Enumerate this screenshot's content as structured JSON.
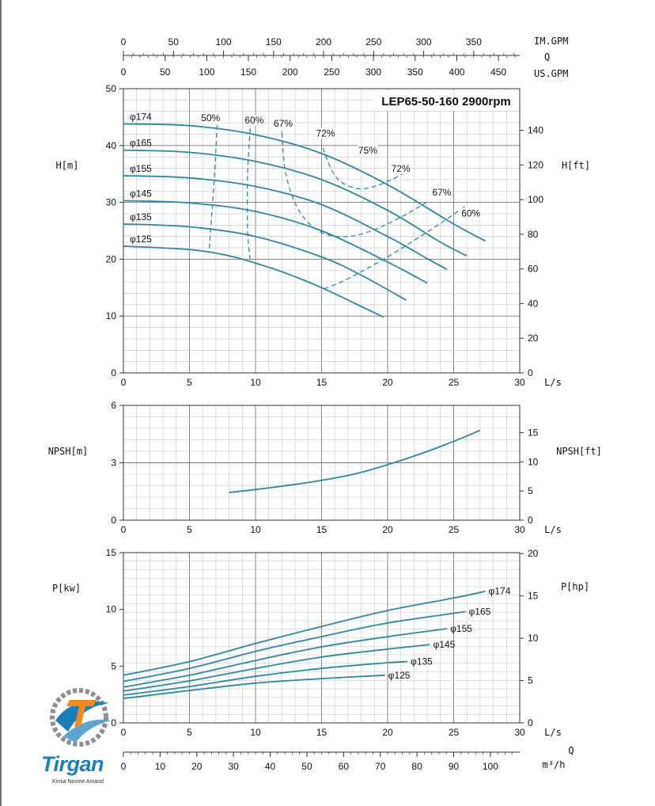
{
  "chart_data": [
    {
      "id": "head",
      "type": "line",
      "title": "LEP65-50-160 2900rpm",
      "xlabel": "L/s",
      "ylabel_left": "H[m]",
      "ylabel_right": "H[ft]",
      "xlim": [
        0,
        30
      ],
      "ylim": [
        0,
        50
      ],
      "x_ticks": [
        "0",
        "5",
        "10",
        "15",
        "20",
        "25",
        "30"
      ],
      "y_ticks_left": [
        "0",
        "10",
        "20",
        "30",
        "40",
        "50"
      ],
      "y_ticks_right": [
        "0",
        "20",
        "40",
        "60",
        "80",
        "100",
        "120",
        "140"
      ],
      "top_axes": [
        {
          "label": "IM.GPM",
          "ticks": [
            "0",
            "50",
            "100",
            "150",
            "200",
            "250",
            "300",
            "350"
          ],
          "ls_per_unit": 0.07577
        },
        {
          "label": "Q",
          "ticks": [],
          "ls_per_unit": 0
        },
        {
          "label": "US.GPM",
          "ticks": [
            "0",
            "50",
            "100",
            "150",
            "200",
            "250",
            "300",
            "350",
            "400",
            "450"
          ],
          "ls_per_unit": 0.06309
        }
      ],
      "series": [
        {
          "name": "φ174",
          "x": [
            0,
            5,
            10,
            15,
            20,
            25,
            27.4
          ],
          "y": [
            43.8,
            43.5,
            41.9,
            38.6,
            33.1,
            26.2,
            23.2
          ]
        },
        {
          "name": "φ165",
          "x": [
            0,
            5,
            10,
            15,
            20,
            24,
            26
          ],
          "y": [
            39.2,
            38.8,
            37.2,
            34.0,
            28.6,
            23.0,
            20.6
          ]
        },
        {
          "name": "φ155",
          "x": [
            0,
            5,
            10,
            15,
            20,
            23,
            24.5
          ],
          "y": [
            34.7,
            34.3,
            32.8,
            29.6,
            24.0,
            20.1,
            18.2
          ]
        },
        {
          "name": "φ145",
          "x": [
            0,
            5,
            10,
            15,
            20,
            23
          ],
          "y": [
            30.3,
            29.9,
            28.4,
            25.0,
            19.5,
            15.8
          ]
        },
        {
          "name": "φ135",
          "x": [
            0,
            5,
            10,
            15,
            18,
            21.4
          ],
          "y": [
            26.2,
            25.7,
            24.0,
            20.4,
            17.2,
            12.8
          ]
        },
        {
          "name": "φ125",
          "x": [
            0,
            5,
            8,
            10,
            12,
            15,
            18,
            19.7
          ],
          "y": [
            22.3,
            21.7,
            20.6,
            19.3,
            17.8,
            15.0,
            11.7,
            9.8
          ]
        }
      ],
      "efficiency_labels": [
        {
          "label": "50%",
          "x": 6.6,
          "y": 44.3
        },
        {
          "label": "60%",
          "x": 9.9,
          "y": 43.9
        },
        {
          "label": "67%",
          "x": 12.1,
          "y": 43.3
        },
        {
          "label": "72%",
          "x": 15.3,
          "y": 41.6
        },
        {
          "label": "75%",
          "x": 18.5,
          "y": 38.6
        },
        {
          "label": "72%",
          "x": 21.0,
          "y": 35.4
        },
        {
          "label": "67%",
          "x": 24.1,
          "y": 31.2
        },
        {
          "label": "60%",
          "x": 26.3,
          "y": 27.5
        }
      ],
      "efficiency_curves": [
        {
          "x": [
            7.1,
            6.9,
            6.6,
            6.5
          ],
          "y": [
            43.6,
            35.0,
            25.0,
            21.4
          ]
        },
        {
          "x": [
            9.6,
            9.4,
            9.4,
            9.6
          ],
          "y": [
            43.0,
            35.0,
            25.0,
            19.8
          ]
        },
        {
          "x": [
            12.0,
            12.3,
            13.3,
            15.0,
            17.0,
            19.0,
            21.0,
            22.0,
            23.0
          ],
          "y": [
            42.3,
            35.0,
            28.5,
            24.7,
            24.0,
            25.2,
            27.4,
            28.7,
            30.1
          ]
        },
        {
          "x": [
            15.1,
            15.8,
            16.6,
            17.8,
            19.0,
            20.3,
            21.5
          ],
          "y": [
            39.6,
            35.5,
            33.4,
            32.4,
            32.8,
            34.0,
            35.5
          ]
        },
        {
          "x": [
            15.2,
            16.5,
            18.0,
            20.0,
            22.0,
            24.0,
            26.0
          ],
          "y": [
            14.8,
            16.0,
            17.8,
            20.4,
            23.3,
            26.3,
            29.5
          ]
        }
      ]
    },
    {
      "id": "npsh",
      "type": "line",
      "xlabel": "L/s",
      "ylabel_left": "NPSH[m]",
      "ylabel_right": "NPSH[ft]",
      "xlim": [
        0,
        30
      ],
      "ylim": [
        0,
        6
      ],
      "x_ticks": [
        "0",
        "5",
        "10",
        "15",
        "20",
        "25",
        "30"
      ],
      "y_ticks_left": [
        "0",
        "3",
        "6"
      ],
      "y_ticks_right": [
        "0",
        "5",
        "10",
        "15"
      ],
      "series": [
        {
          "x": [
            8,
            10,
            12,
            14,
            16,
            18,
            20,
            22,
            24,
            26,
            27
          ],
          "y": [
            1.45,
            1.6,
            1.78,
            1.97,
            2.2,
            2.5,
            2.9,
            3.35,
            3.85,
            4.4,
            4.7
          ]
        }
      ]
    },
    {
      "id": "power",
      "type": "line",
      "xlabel": "L/s",
      "ylabel_left": "P[kw]",
      "ylabel_right": "P[hp]",
      "xlim": [
        0,
        30
      ],
      "ylim": [
        0,
        15
      ],
      "x_ticks": [
        "0",
        "5",
        "10",
        "15",
        "20",
        "25",
        "30"
      ],
      "y_ticks_left": [
        "0",
        "5",
        "10",
        "15"
      ],
      "y_ticks_right": [
        "0",
        "5",
        "10",
        "15",
        "20"
      ],
      "bottom_axis": {
        "label": "Q",
        "unit": "m³/h",
        "ticks": [
          "0",
          "10",
          "20",
          "30",
          "40",
          "50",
          "60",
          "70",
          "80",
          "90",
          "100"
        ],
        "ls_per_unit": 0.27778
      },
      "series": [
        {
          "name": "φ174",
          "x": [
            0,
            5,
            10,
            15,
            20,
            25,
            27.4
          ],
          "y": [
            4.2,
            5.4,
            7.0,
            8.5,
            9.9,
            11.0,
            11.6
          ]
        },
        {
          "name": "φ165",
          "x": [
            0,
            5,
            10,
            15,
            20,
            25.9
          ],
          "y": [
            3.65,
            4.8,
            6.3,
            7.6,
            8.8,
            9.8
          ]
        },
        {
          "name": "φ155",
          "x": [
            0,
            5,
            10,
            15,
            20,
            24.5
          ],
          "y": [
            3.15,
            4.2,
            5.5,
            6.7,
            7.6,
            8.3
          ]
        },
        {
          "name": "φ145",
          "x": [
            0,
            5,
            10,
            15,
            20,
            23.2
          ],
          "y": [
            2.8,
            3.7,
            4.8,
            5.8,
            6.5,
            6.9
          ]
        },
        {
          "name": "φ135",
          "x": [
            0,
            5,
            10,
            15,
            20,
            21.5
          ],
          "y": [
            2.45,
            3.2,
            4.1,
            4.8,
            5.3,
            5.4
          ]
        },
        {
          "name": "φ125",
          "x": [
            0,
            5,
            10,
            15,
            19.8
          ],
          "y": [
            2.15,
            2.85,
            3.5,
            3.9,
            4.2
          ]
        }
      ]
    }
  ],
  "colors": {
    "curve": "#2b88a8",
    "grid": "#9a9a9a",
    "axis": "#333333",
    "logo_blue": "#1a7fb8",
    "logo_orange": "#f08a1c",
    "logo_gray": "#8a8f96"
  },
  "logo": {
    "word": "Tirgan",
    "subtitle": "Kimia Novine Arvand"
  }
}
